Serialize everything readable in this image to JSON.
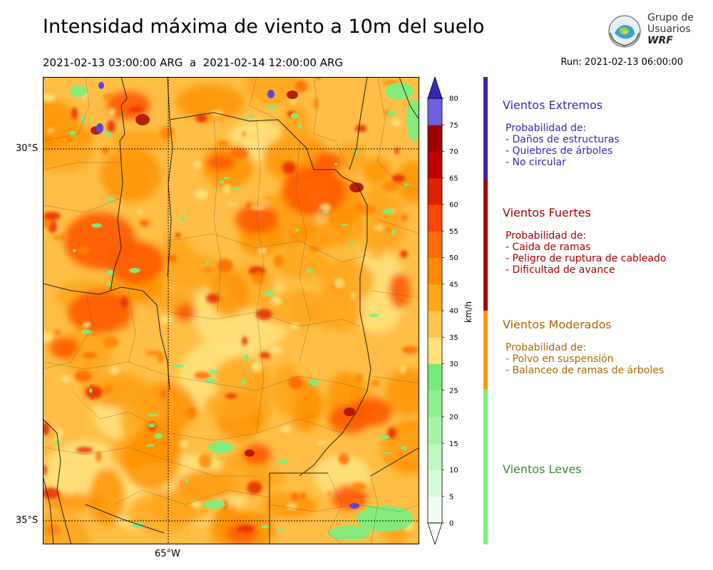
{
  "header": {
    "title": "Intensidad máxima de viento a 10m del suelo",
    "period": "2021-02-13 03:00:00 ARG  a  2021-02-14 12:00:00 ARG",
    "run": "Run: 2021-02-13 06:00:00"
  },
  "logo": {
    "line1": "Grupo de",
    "line2": "Usuarios",
    "line3": "WRF"
  },
  "map": {
    "lat_labels": [
      "30°S",
      "35°S"
    ],
    "lon_labels": [
      "65°W"
    ]
  },
  "colorbar": {
    "unit": "km/h",
    "ticks": [
      "0",
      "5",
      "10",
      "15",
      "20",
      "25",
      "30",
      "35",
      "40",
      "45",
      "50",
      "55",
      "60",
      "65",
      "70",
      "75",
      "80"
    ],
    "colors": [
      "#f0fdf0",
      "#d6fad6",
      "#bff7bf",
      "#a7f4a7",
      "#8ff08f",
      "#76ec76",
      "#ffe07a",
      "#ffc44d",
      "#ffa81a",
      "#ff8c00",
      "#ff6b00",
      "#ff4500",
      "#e02000",
      "#c00000",
      "#a00000",
      "#7060e0",
      "#5040d0",
      "#3828b8"
    ]
  },
  "categories": [
    {
      "title": "Vientos Extremos",
      "color": "#3b28a8",
      "lines": [
        "Probabilidad de:",
        "- Daños de estructuras",
        "- Quiebres de árboles",
        "- No circular"
      ]
    },
    {
      "title": "Vientos Fuertes",
      "color": "#a80000",
      "lines": [
        "Probabilidad de:",
        "- Caida de ramas",
        "- Peligro de ruptura de cableado",
        "- Dificultad de avance"
      ]
    },
    {
      "title": "Vientos Moderados",
      "color": "#a86a00",
      "lines": [
        "Probabilidad de:",
        "- Polvo en suspensión",
        "- Balanceo de ramas de árboles"
      ]
    },
    {
      "title": "Vientos Leves",
      "color": "#3a8a3a",
      "lines": []
    }
  ],
  "band_colors": {
    "extremos": "#3b28a8",
    "fuertes": "#a80000",
    "moderados": "#ff9900",
    "leves": "#77f077"
  }
}
